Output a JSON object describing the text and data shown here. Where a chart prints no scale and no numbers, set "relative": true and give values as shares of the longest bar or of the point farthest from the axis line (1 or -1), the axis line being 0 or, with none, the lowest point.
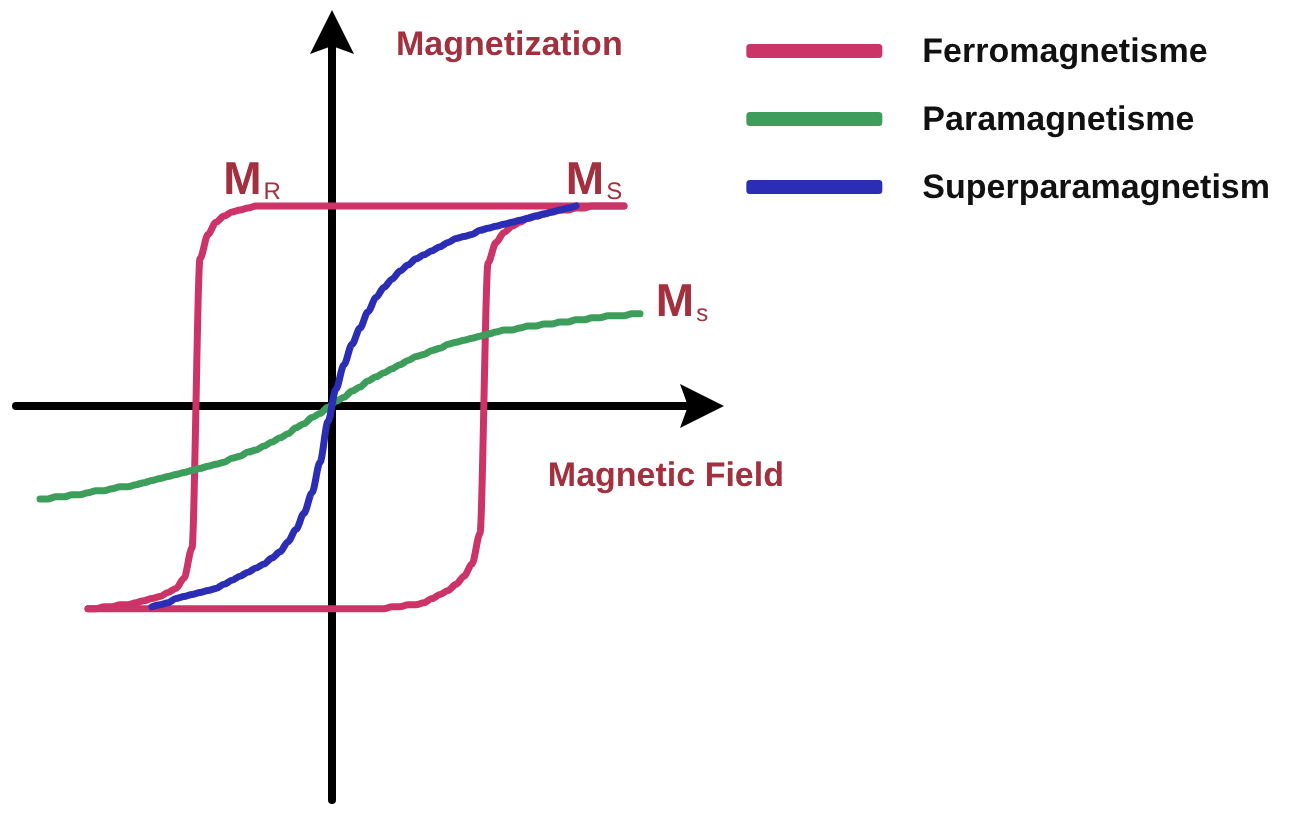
{
  "chart_data": {
    "type": "line",
    "relative": true,
    "xlabel": "Magnetic Field",
    "ylabel": "Magnetization",
    "legend": "top right",
    "marker": "none",
    "categories": [
      null,
      null,
      null,
      null,
      null,
      null,
      null,
      null,
      null,
      null,
      null,
      null,
      null,
      null,
      null,
      null,
      null,
      null,
      null,
      null,
      null,
      null,
      null,
      null,
      null,
      null,
      null,
      null,
      null,
      null,
      null,
      null,
      null,
      null,
      null,
      null,
      null,
      null,
      null,
      null,
      null,
      null,
      null,
      null,
      null,
      null,
      null,
      null,
      null,
      null,
      null,
      null,
      null,
      null,
      null,
      null,
      null,
      null,
      null,
      null,
      null,
      null,
      null,
      null,
      null,
      null,
      null,
      null,
      null,
      null,
      null,
      null,
      null,
      null,
      null,
      null,
      null,
      null,
      null,
      null,
      null,
      null,
      null,
      null,
      null,
      null,
      null
    ],
    "series": [
      {
        "name": "Ferromagnetisme",
        "color": "#cc3366",
        "values": [
          null,
          null,
          null,
          null,
          null,
          null,
          null,
          null,
          null,
          -1,
          -1,
          -0.99,
          -0.99,
          -0.98,
          -0.98,
          -0.97,
          -0.96,
          -0.95,
          -0.94,
          -0.92,
          -0.9,
          -0.85,
          -0.7,
          0.72,
          0.84,
          0.9,
          0.93,
          0.95,
          0.96,
          0.97,
          0.98,
          0.98,
          0.98,
          0.98,
          0.98,
          0.98,
          0.98,
          0.98,
          0.98,
          0.98,
          0.98,
          0.98,
          0.98,
          0.98,
          0.98,
          0.98,
          0.98,
          0.98,
          0.98,
          0.98,
          0.98,
          0.98,
          0.98,
          0.98,
          0.98,
          0.98,
          0.98,
          0.98,
          0.98,
          0.98,
          0.98,
          0.98,
          0.98,
          0.98,
          0.98,
          0.98,
          0.98,
          0.98,
          0.98,
          0.98,
          0.98,
          0.98,
          0.98,
          0.98,
          0.98,
          0.98,
          0.98,
          null,
          null,
          null,
          null,
          null,
          null,
          null,
          null,
          null,
          null
        ]
      },
      {
        "color": "#cc3366",
        "values": [
          null,
          null,
          null,
          null,
          null,
          null,
          null,
          null,
          null,
          -1,
          -1,
          -1,
          -1,
          -1,
          -1,
          -1,
          -1,
          -1,
          -1,
          -1,
          -1,
          -1,
          -1,
          -1,
          -1,
          -1,
          -1,
          -1,
          -1,
          -1,
          -1,
          -1,
          -1,
          -1,
          -1,
          -1,
          -1,
          -1,
          -1,
          -1,
          -1,
          -1,
          -1,
          -1,
          -1,
          -1,
          -1,
          -0.99,
          -0.99,
          -0.98,
          -0.98,
          -0.97,
          -0.95,
          -0.93,
          -0.91,
          -0.88,
          -0.84,
          -0.78,
          -0.63,
          0.7,
          0.8,
          0.85,
          0.88,
          0.9,
          0.92,
          0.93,
          0.94,
          0.95,
          0.96,
          0.96,
          0.97,
          0.97,
          0.98,
          0.98,
          0.98,
          0.98,
          0.98,
          null,
          null,
          null,
          null,
          null,
          null,
          null,
          null,
          null,
          null
        ]
      },
      {
        "name": "Paramagnetisme",
        "color": "#3d9e5c",
        "values": [
          null,
          null,
          null,
          -0.46,
          -0.46,
          -0.45,
          -0.45,
          -0.44,
          -0.44,
          -0.43,
          -0.42,
          -0.42,
          -0.41,
          -0.4,
          -0.4,
          -0.39,
          -0.38,
          -0.37,
          -0.36,
          -0.35,
          -0.34,
          -0.33,
          -0.32,
          -0.31,
          -0.3,
          -0.29,
          -0.28,
          -0.26,
          -0.25,
          -0.23,
          -0.22,
          -0.2,
          -0.18,
          -0.16,
          -0.14,
          -0.11,
          -0.09,
          -0.06,
          -0.04,
          -0.01,
          0.02,
          0.04,
          0.07,
          0.09,
          0.12,
          0.14,
          0.16,
          0.18,
          0.2,
          0.22,
          0.24,
          0.25,
          0.27,
          0.28,
          0.3,
          0.31,
          0.32,
          0.33,
          0.34,
          0.35,
          0.36,
          0.37,
          0.37,
          0.38,
          0.39,
          0.39,
          0.4,
          0.4,
          0.41,
          0.41,
          0.42,
          0.42,
          0.43,
          0.43,
          0.44,
          0.44,
          0.44,
          0.45,
          0.45,
          null,
          null,
          null,
          null,
          null,
          null,
          null,
          null
        ]
      },
      {
        "name": "Superparamagnetism",
        "color": "#2b2db5",
        "values": [
          null,
          null,
          null,
          null,
          null,
          null,
          null,
          null,
          null,
          null,
          null,
          null,
          null,
          null,
          null,
          null,
          null,
          -0.99,
          -0.98,
          -0.97,
          -0.95,
          -0.94,
          -0.93,
          -0.92,
          -0.91,
          -0.9,
          -0.88,
          -0.86,
          -0.84,
          -0.82,
          -0.8,
          -0.78,
          -0.75,
          -0.72,
          -0.67,
          -0.61,
          -0.53,
          -0.43,
          -0.28,
          -0.08,
          0.08,
          0.2,
          0.3,
          0.38,
          0.46,
          0.53,
          0.58,
          0.62,
          0.66,
          0.69,
          0.72,
          0.74,
          0.76,
          0.78,
          0.8,
          0.82,
          0.83,
          0.84,
          0.86,
          0.87,
          0.88,
          0.89,
          0.9,
          0.91,
          0.92,
          0.93,
          0.94,
          0.95,
          0.96,
          0.97,
          0.98,
          null,
          null,
          null,
          null,
          null,
          null,
          null,
          null,
          null,
          null,
          null,
          null,
          null,
          null,
          null,
          null
        ]
      }
    ],
    "annotations": [
      "M$_{R}$",
      "M$_{S}$",
      "M$_{s}$"
    ]
  }
}
